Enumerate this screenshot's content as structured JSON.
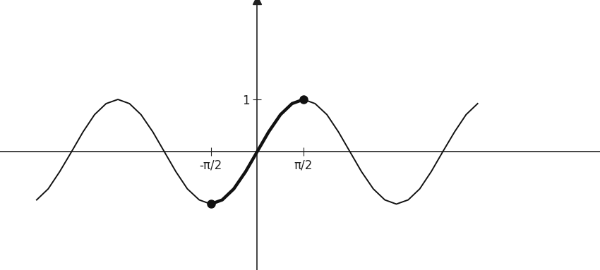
{
  "chart_data": {
    "type": "line",
    "xlim": [
      -8.7,
      11.6
    ],
    "ylim": [
      -2.26,
      2.9
    ],
    "xticks": [
      {
        "value": -1.57,
        "label": "-π/2"
      },
      {
        "value": 1.57,
        "label": "π/2"
      }
    ],
    "yticks": [
      1
    ],
    "grid": false,
    "series": [
      {
        "color": "#111111",
        "line_style": "solid",
        "x": [
          -7.46,
          -7.07,
          -6.68,
          -6.28,
          -5.89,
          -5.5,
          -5.11,
          -4.71,
          -4.32,
          -3.93,
          -3.53,
          -3.14,
          -2.75,
          -2.36,
          -1.96,
          -1.57,
          -1.18,
          -0.79,
          -0.39,
          0,
          0.39,
          0.79,
          1.18,
          1.57,
          1.96,
          2.36,
          2.75,
          3.14,
          3.53,
          3.93,
          4.32,
          4.71,
          5.11,
          5.5,
          5.89,
          6.28,
          6.68,
          7.07,
          7.46
        ],
        "values": [
          -0.92,
          -0.71,
          -0.38,
          0,
          0.38,
          0.71,
          0.92,
          1,
          0.92,
          0.71,
          0.38,
          0,
          -0.38,
          -0.71,
          -0.92,
          -1,
          -0.92,
          -0.71,
          -0.38,
          0,
          0.38,
          0.71,
          0.92,
          1,
          0.92,
          0.71,
          0.38,
          0,
          -0.38,
          -0.71,
          -0.92,
          -1,
          -0.92,
          -0.71,
          -0.38,
          0,
          0.38,
          0.71,
          0.92
        ]
      },
      {
        "color": "#111111",
        "line_style": "bold",
        "marker": "o",
        "x": [
          -1.57,
          -1.18,
          -0.79,
          -0.39,
          0,
          0.39,
          0.79,
          1.18,
          1.57
        ],
        "values": [
          -1,
          -0.92,
          -0.71,
          -0.38,
          0,
          0.38,
          0.71,
          0.92,
          1
        ]
      }
    ]
  }
}
